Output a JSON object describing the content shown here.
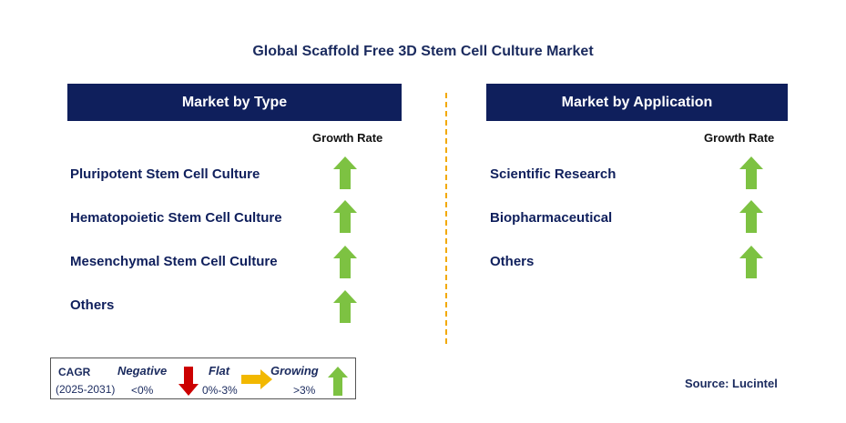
{
  "title": "Global Scaffold Free 3D Stem Cell Culture Market",
  "left_panel": {
    "header": "Market by Type",
    "growth_label": "Growth Rate",
    "items": [
      {
        "label": "Pluripotent Stem Cell Culture",
        "trend": "growing"
      },
      {
        "label": "Hematopoietic Stem Cell Culture",
        "trend": "growing"
      },
      {
        "label": "Mesenchymal Stem Cell Culture",
        "trend": "growing"
      },
      {
        "label": "Others",
        "trend": "growing"
      }
    ]
  },
  "right_panel": {
    "header": "Market by Application",
    "growth_label": "Growth Rate",
    "items": [
      {
        "label": "Scientific Research",
        "trend": "growing"
      },
      {
        "label": "Biopharmaceutical",
        "trend": "growing"
      },
      {
        "label": "Others",
        "trend": "growing"
      }
    ]
  },
  "legend": {
    "cagr_label": "CAGR",
    "period": "(2025-2031)",
    "negative_label": "Negative",
    "negative_range": "<0%",
    "flat_label": "Flat",
    "flat_range": "0%-3%",
    "growing_label": "Growing",
    "growing_range": ">3%"
  },
  "source": "Source: Lucintel",
  "colors": {
    "header_bg": "#0f1f5c",
    "growing": "#7dc242",
    "negative": "#cc0000",
    "flat": "#f2b800",
    "divider": "#f2a900"
  }
}
